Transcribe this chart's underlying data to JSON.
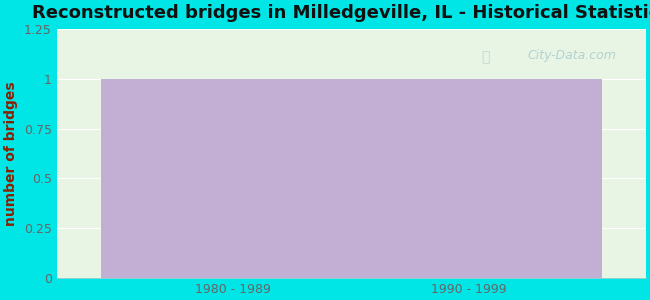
{
  "title": "Reconstructed bridges in Milledgeville, IL - Historical Statistics",
  "categories": [
    "1980 - 1989",
    "1990 - 1999"
  ],
  "values": [
    1,
    1
  ],
  "bar_color": "#c4afd4",
  "ylabel": "number of bridges",
  "ylim": [
    0,
    1.25
  ],
  "yticks": [
    0,
    0.25,
    0.5,
    0.75,
    1.0,
    1.25
  ],
  "ytick_labels": [
    "0",
    "0.25",
    "0.5",
    "0.75",
    "1",
    "1.25"
  ],
  "background_outer": "#00e5e5",
  "background_plot": "#e8f5e4",
  "title_color": "#111111",
  "axis_label_color": "#8b2000",
  "tick_color": "#666666",
  "watermark": "City-Data.com",
  "title_fontsize": 13,
  "label_fontsize": 10,
  "bar_width": 0.45
}
